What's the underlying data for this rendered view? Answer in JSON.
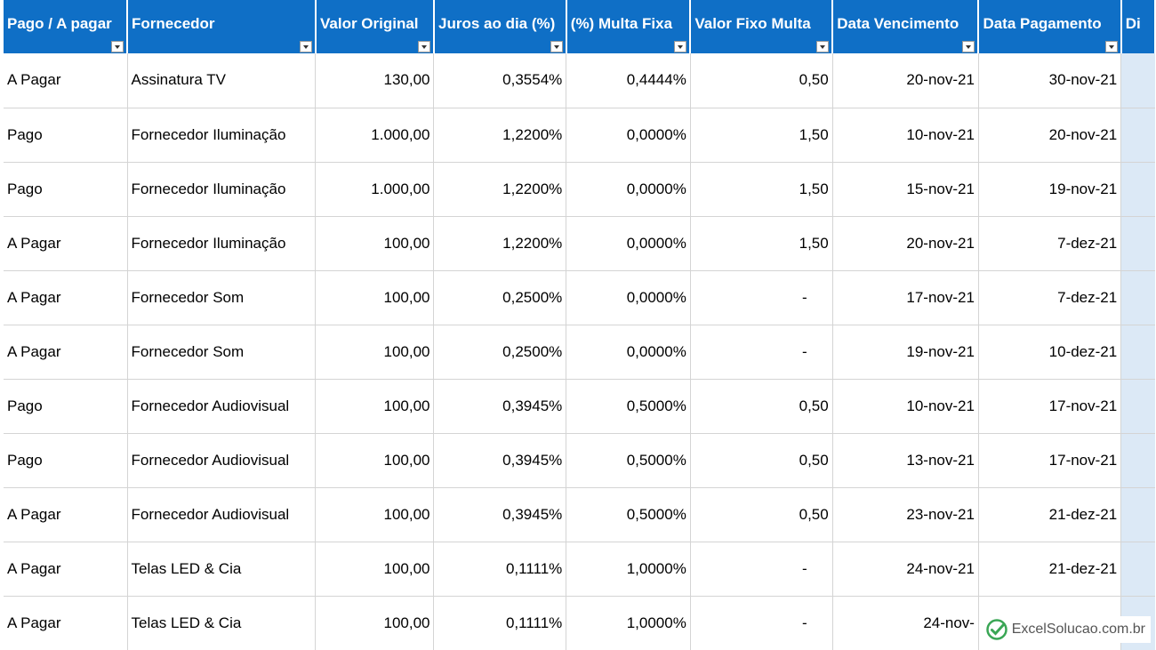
{
  "headers": [
    "Pago / A pagar",
    "Fornecedor",
    "Valor Original",
    "Juros ao dia (%)",
    "(%) Multa Fixa",
    "Valor Fixo Multa",
    "Data Vencimento",
    "Data Pagamento",
    "Di"
  ],
  "rows": [
    [
      "A Pagar",
      "Assinatura TV",
      "130,00",
      "0,3554%",
      "0,4444%",
      "0,50",
      "20-nov-21",
      "30-nov-21"
    ],
    [
      "Pago",
      "Fornecedor Iluminação",
      "1.000,00",
      "1,2200%",
      "0,0000%",
      "1,50",
      "10-nov-21",
      "20-nov-21"
    ],
    [
      "Pago",
      "Fornecedor Iluminação",
      "1.000,00",
      "1,2200%",
      "0,0000%",
      "1,50",
      "15-nov-21",
      "19-nov-21"
    ],
    [
      "A Pagar",
      "Fornecedor Iluminação",
      "100,00",
      "1,2200%",
      "0,0000%",
      "1,50",
      "20-nov-21",
      "7-dez-21"
    ],
    [
      "A Pagar",
      "Fornecedor Som",
      "100,00",
      "0,2500%",
      "0,0000%",
      "-",
      "17-nov-21",
      "7-dez-21"
    ],
    [
      "A Pagar",
      "Fornecedor Som",
      "100,00",
      "0,2500%",
      "0,0000%",
      "-",
      "19-nov-21",
      "10-dez-21"
    ],
    [
      "Pago",
      "Fornecedor Audiovisual",
      "100,00",
      "0,3945%",
      "0,5000%",
      "0,50",
      "10-nov-21",
      "17-nov-21"
    ],
    [
      "Pago",
      "Fornecedor Audiovisual",
      "100,00",
      "0,3945%",
      "0,5000%",
      "0,50",
      "13-nov-21",
      "17-nov-21"
    ],
    [
      "A Pagar",
      "Fornecedor Audiovisual",
      "100,00",
      "0,3945%",
      "0,5000%",
      "0,50",
      "23-nov-21",
      "21-dez-21"
    ],
    [
      "A Pagar",
      "Telas LED & Cia",
      "100,00",
      "0,1111%",
      "1,0000%",
      "-",
      "24-nov-21",
      "21-dez-21"
    ],
    [
      "A Pagar",
      "Telas LED & Cia",
      "100,00",
      "0,1111%",
      "1,0000%",
      "-",
      "24-nov-",
      ""
    ]
  ],
  "watermark": "ExcelSolucao.com.br",
  "colors": {
    "header_bg": "#0f6fc6",
    "header_text": "#ffffff",
    "grid": "#d4d4d4",
    "watermark_green": "#3aa655"
  }
}
